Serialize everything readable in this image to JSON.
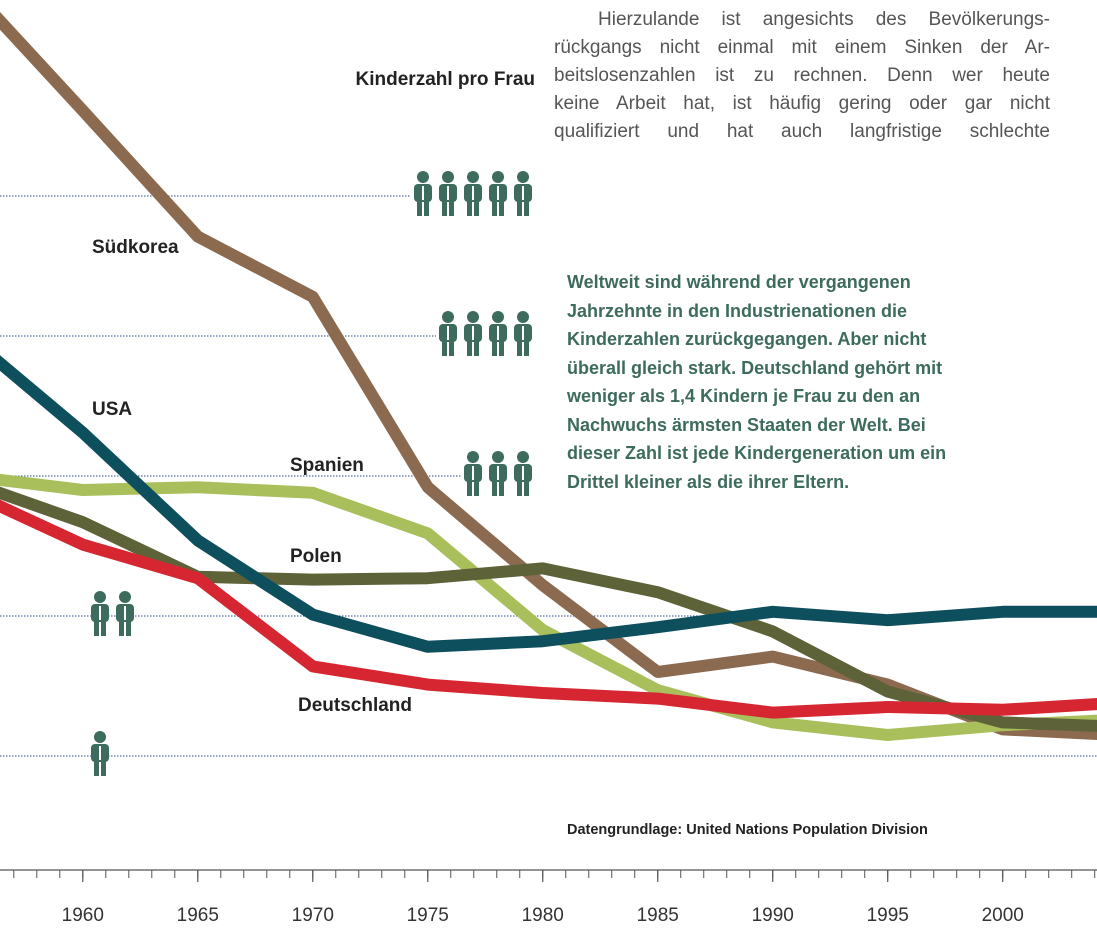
{
  "chart_data": {
    "type": "line",
    "title": "Kinderzahl pro Frau",
    "intro": [
      "Hierzulande ist angesichts des Bevölkerungs-",
      "rückgangs nicht einmal mit einem Sinken der Ar-",
      "beitslosenzahlen ist zu rechnen. Denn wer heute",
      "keine Arbeit hat, ist häufig gering oder gar nicht",
      "qualifiziert und hat auch langfristige schlechte"
    ],
    "note": [
      "Weltweit sind während der vergangenen",
      "Jahrzehnte in den Industrienationen die",
      "Kinderzahlen zurückgegangen. Aber nicht",
      "überall gleich stark. Deutschland gehört mit",
      "weniger als 1,4 Kindern je Frau zu den an",
      "Nachwuchs ärmsten Staaten der Welt. Bei",
      "dieser Zahl ist jede Kindergeneration um ein",
      "Drittel kleiner als die ihrer Eltern."
    ],
    "source": "Datengrundlage: United Nations Population Division",
    "x": [
      1955,
      1960,
      1965,
      1970,
      1975,
      1980,
      1985,
      1990,
      1995,
      2000,
      2005
    ],
    "series": [
      {
        "name": "Südkorea",
        "color": "#8b6a50",
        "values": [
          6.5,
          5.61,
          4.71,
          4.28,
          2.92,
          2.22,
          1.6,
          1.71,
          1.51,
          1.19,
          1.15
        ]
      },
      {
        "name": "Spanien",
        "color": "#a9bf5c",
        "values": [
          3.0,
          2.9,
          2.92,
          2.88,
          2.59,
          1.9,
          1.47,
          1.24,
          1.15,
          1.22,
          1.26
        ]
      },
      {
        "name": "Polen",
        "color": "#5d6238",
        "values": [
          2.96,
          2.67,
          2.28,
          2.26,
          2.27,
          2.34,
          2.17,
          1.89,
          1.46,
          1.24,
          1.21
        ]
      },
      {
        "name": "USA",
        "color": "#0e4f5e",
        "values": [
          4.0,
          3.31,
          2.54,
          2.01,
          1.78,
          1.82,
          1.92,
          2.03,
          1.97,
          2.03,
          2.03
        ]
      },
      {
        "name": "Deutschland",
        "color": "#d62631",
        "values": [
          2.89,
          2.51,
          2.27,
          1.64,
          1.51,
          1.45,
          1.41,
          1.31,
          1.35,
          1.33,
          1.38
        ]
      }
    ],
    "xlim": [
      1956.4,
      2004.1
    ],
    "xticks": [
      1960,
      1965,
      1970,
      1975,
      1980,
      1985,
      1990,
      1995,
      2000
    ],
    "ylim": [
      -0.3,
      6.4
    ],
    "yticks": [
      1,
      2,
      3,
      4,
      5
    ],
    "grid": true,
    "icon_color": "#3d6b5d"
  }
}
